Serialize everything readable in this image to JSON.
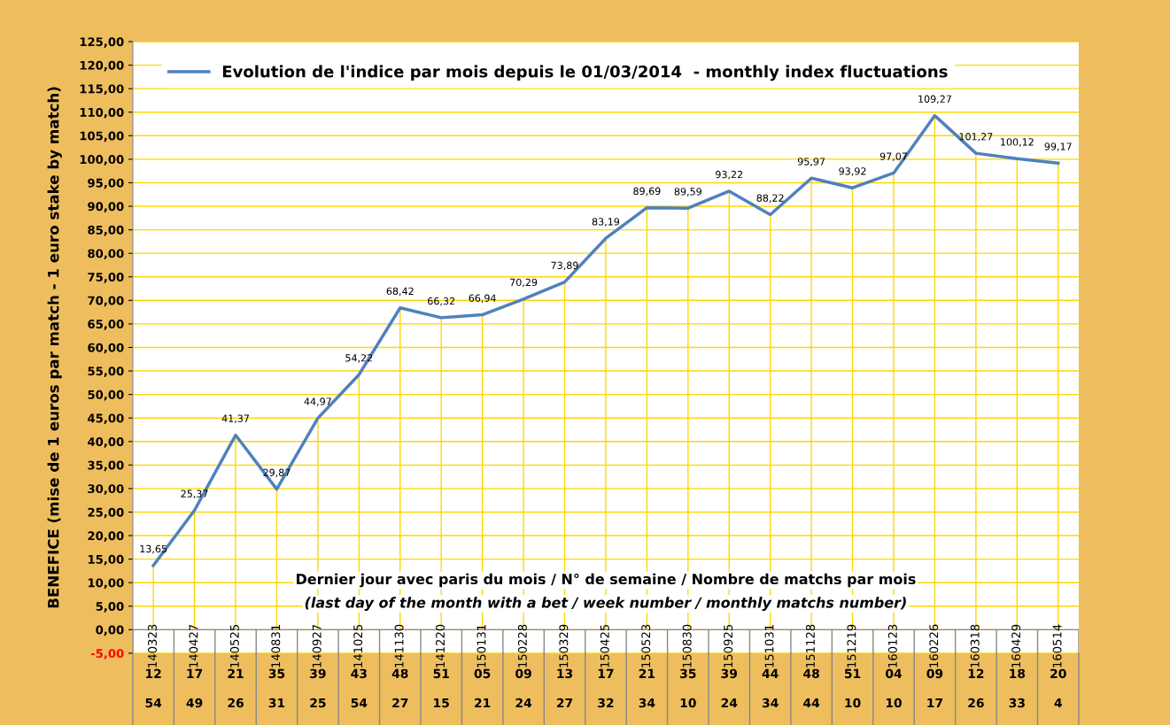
{
  "chart_data": {
    "type": "line",
    "ylabel": "BENEFICE (mise de 1 euros par match - 1 euro stake by match)",
    "xlabel": "Dernier jour avec paris du mois / N° de semaine / Nombre de matchs par mois",
    "annotations": [
      "(last day of the month with a bet / week number / monthly matchs number)",
      "12",
      "17",
      "21",
      "35",
      "39",
      "43",
      "48",
      "51",
      "05",
      "09",
      "13",
      "17",
      "21",
      "35",
      "39",
      "44",
      "48",
      "51",
      "04",
      "09",
      "12",
      "18",
      "20",
      "54",
      "49",
      "26",
      "31",
      "25",
      "54",
      "27",
      "15",
      "21",
      "24",
      "27",
      "32",
      "34",
      "10",
      "24",
      "34",
      "44",
      "10",
      "10",
      "17",
      "26",
      "33",
      "4"
    ],
    "categories": [
      "140323",
      "140427",
      "140525",
      "140831",
      "140927",
      "141025",
      "141130",
      "141220",
      "150131",
      "150228",
      "150329",
      "150425",
      "150523",
      "150830",
      "150925",
      "151031",
      "151128",
      "151219",
      "160123",
      "160226",
      "160318",
      "160429",
      "160514"
    ],
    "series": [
      {
        "name": "Evolution de l'indice par mois depuis le 01/03/2014  - monthly index fluctuations",
        "color": "#4f81bd",
        "values": [
          13.65,
          25.37,
          41.37,
          29.87,
          44.97,
          54.22,
          68.42,
          66.32,
          66.94,
          70.29,
          73.89,
          83.19,
          89.69,
          89.59,
          93.22,
          88.22,
          95.97,
          93.92,
          97.07,
          109.27,
          101.27,
          100.12,
          99.17
        ],
        "value_labels": [
          "13,65",
          "25,37",
          "41,37",
          "29,87",
          "44,97",
          "54,22",
          "68,42",
          "66,32",
          "66,94",
          "70,29",
          "73,89",
          "83,19",
          "89,69",
          "89,59",
          "93,22",
          "88,22",
          "95,97",
          "93,92",
          "97,07",
          "109,27",
          "101,27",
          "100,12",
          "99,17"
        ]
      }
    ],
    "ylim": [
      -5,
      125
    ],
    "yticks": [
      {
        "value": -5,
        "label": "-5,00"
      },
      {
        "value": 0,
        "label": "0,00"
      },
      {
        "value": 5,
        "label": "5,00"
      },
      {
        "value": 10,
        "label": "10,00"
      },
      {
        "value": 15,
        "label": "15,00"
      },
      {
        "value": 20,
        "label": "20,00"
      },
      {
        "value": 25,
        "label": "25,00"
      },
      {
        "value": 30,
        "label": "30,00"
      },
      {
        "value": 35,
        "label": "35,00"
      },
      {
        "value": 40,
        "label": "40,00"
      },
      {
        "value": 45,
        "label": "45,00"
      },
      {
        "value": 50,
        "label": "50,00"
      },
      {
        "value": 55,
        "label": "55,00"
      },
      {
        "value": 60,
        "label": "60,00"
      },
      {
        "value": 65,
        "label": "65,00"
      },
      {
        "value": 70,
        "label": "70,00"
      },
      {
        "value": 75,
        "label": "75,00"
      },
      {
        "value": 80,
        "label": "80,00"
      },
      {
        "value": 85,
        "label": "85,00"
      },
      {
        "value": 90,
        "label": "90,00"
      },
      {
        "value": 95,
        "label": "95,00"
      },
      {
        "value": 100,
        "label": "100,00"
      },
      {
        "value": 105,
        "label": "105,00"
      },
      {
        "value": 110,
        "label": "110,00"
      },
      {
        "value": 115,
        "label": "115,00"
      },
      {
        "value": 120,
        "label": "120,00"
      },
      {
        "value": 125,
        "label": "125,00"
      }
    ],
    "grid": true,
    "legend": "top",
    "marker": "none",
    "line_style": "solid"
  }
}
